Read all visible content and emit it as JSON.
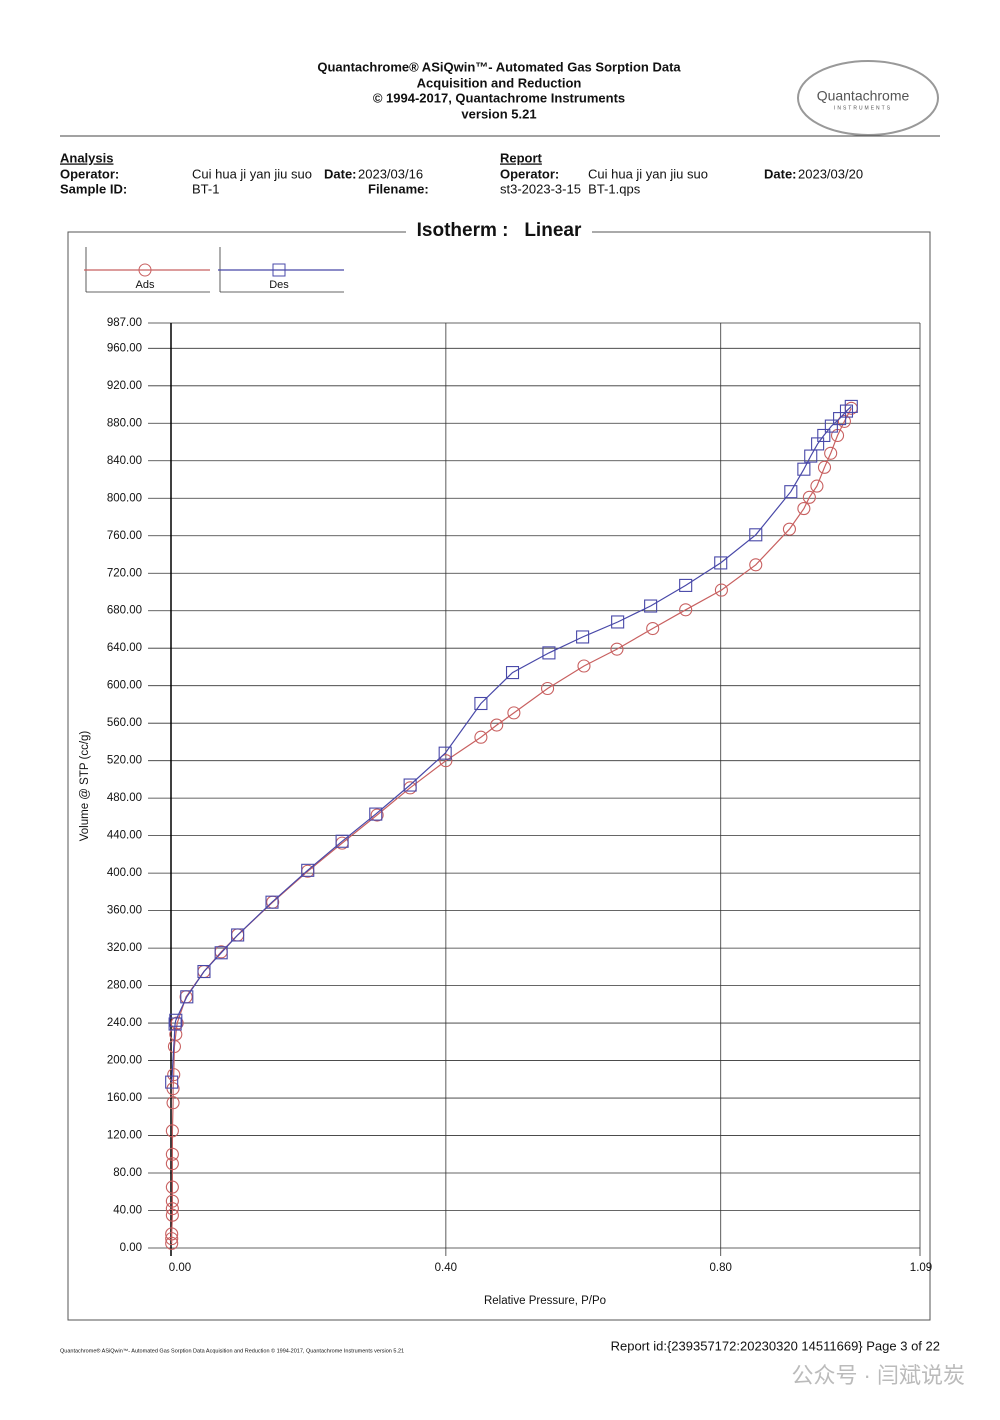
{
  "header": {
    "title_lines": [
      "Quantachrome® ASiQwin™- Automated Gas Sorption Data",
      "Acquisition and Reduction",
      "© 1994-2017, Quantachrome Instruments",
      "version 5.21"
    ],
    "logo": "Quantachrome",
    "logo_sub": "INSTRUMENTS"
  },
  "analysis": {
    "heading": "Analysis",
    "operator_label": "Operator:",
    "operator": "Cui hua ji yan jiu suo",
    "date_label": "Date:",
    "date": "2023/03/16",
    "sample_label": "Sample ID:",
    "sample": "BT-1",
    "filename_label": "Filename:"
  },
  "report": {
    "heading": "Report",
    "operator_label": "Operator:",
    "operator": "Cui hua ji yan jiu suo",
    "date_label": "Date:",
    "date": "2023/03/20",
    "filename": "st3-2023-3-15  BT-1.qps"
  },
  "chart_data": {
    "type": "line",
    "title": "Isotherm :   Linear",
    "x_label": "Relative Pressure, P/Po",
    "y_label": "Volume @ STP (cc/g)",
    "xlim": [
      0,
      1.09
    ],
    "ylim": [
      0,
      987
    ],
    "xticks": [
      {
        "value": 0,
        "label": "0.00"
      },
      {
        "value": 0.4,
        "label": "0.40"
      },
      {
        "value": 0.8,
        "label": "0.80"
      },
      {
        "value": 1.09,
        "label": "1.09"
      }
    ],
    "yticks": [
      {
        "value": 0,
        "label": "0.00"
      },
      {
        "value": 40,
        "label": "40.00"
      },
      {
        "value": 80,
        "label": "80.00"
      },
      {
        "value": 120,
        "label": "120.00"
      },
      {
        "value": 160,
        "label": "160.00"
      },
      {
        "value": 200,
        "label": "200.00"
      },
      {
        "value": 240,
        "label": "240.00"
      },
      {
        "value": 280,
        "label": "280.00"
      },
      {
        "value": 320,
        "label": "320.00"
      },
      {
        "value": 360,
        "label": "360.00"
      },
      {
        "value": 400,
        "label": "400.00"
      },
      {
        "value": 440,
        "label": "440.00"
      },
      {
        "value": 480,
        "label": "480.00"
      },
      {
        "value": 520,
        "label": "520.00"
      },
      {
        "value": 560,
        "label": "560.00"
      },
      {
        "value": 600,
        "label": "600.00"
      },
      {
        "value": 640,
        "label": "640.00"
      },
      {
        "value": 680,
        "label": "680.00"
      },
      {
        "value": 720,
        "label": "720.00"
      },
      {
        "value": 760,
        "label": "760.00"
      },
      {
        "value": 800,
        "label": "800.00"
      },
      {
        "value": 840,
        "label": "840.00"
      },
      {
        "value": 880,
        "label": "880.00"
      },
      {
        "value": 920,
        "label": "920.00"
      },
      {
        "value": 960,
        "label": "960.00"
      },
      {
        "value": 987,
        "label": "987.00"
      }
    ],
    "grid": true,
    "legend": "top-left",
    "series": [
      {
        "name": "Ads",
        "color": "#c86060",
        "marker": "circle",
        "x": [
          0.001,
          0.001,
          0.001,
          0.002,
          0.002,
          0.002,
          0.002,
          0.002,
          0.002,
          0.002,
          0.003,
          0.003,
          0.004,
          0.005,
          0.007,
          0.009,
          0.022,
          0.048,
          0.073,
          0.097,
          0.148,
          0.199,
          0.249,
          0.3,
          0.348,
          0.4,
          0.451,
          0.474,
          0.499,
          0.548,
          0.601,
          0.649,
          0.701,
          0.749,
          0.801,
          0.851,
          0.9,
          0.921,
          0.929,
          0.94,
          0.951,
          0.96,
          0.97,
          0.98,
          0.99
        ],
        "values": [
          5,
          10,
          15,
          35,
          42,
          50,
          65,
          90,
          100,
          125,
          155,
          170,
          185,
          215,
          228,
          240,
          268,
          295,
          316,
          334,
          369,
          402,
          432,
          462,
          491,
          520,
          545,
          558,
          571,
          597,
          621,
          639,
          661,
          681,
          702,
          729,
          767,
          789,
          801,
          813,
          833,
          848,
          867,
          882,
          896
        ]
      },
      {
        "name": "Des",
        "color": "#4848a8",
        "marker": "square",
        "x": [
          0.99,
          0.983,
          0.973,
          0.961,
          0.95,
          0.941,
          0.931,
          0.921,
          0.902,
          0.851,
          0.8,
          0.749,
          0.698,
          0.65,
          0.599,
          0.55,
          0.497,
          0.451,
          0.399,
          0.348,
          0.298,
          0.249,
          0.199,
          0.147,
          0.097,
          0.073,
          0.048,
          0.023,
          0.007,
          0.006,
          0.001
        ],
        "values": [
          898,
          893,
          885,
          877,
          867,
          858,
          845,
          831,
          807,
          761,
          731,
          707,
          685,
          668,
          652,
          635,
          614,
          581,
          528,
          494,
          463,
          434,
          403,
          369,
          334,
          315,
          295,
          268,
          243,
          239,
          177
        ]
      }
    ]
  },
  "footer": {
    "left": "Quantachrome® ASiQwin™- Automated Gas Sorption Data Acquisition and Reduction © 1994-2017, Quantachrome Instruments version 5.21",
    "right": "Report id:{239357172:20230320 14511669} Page 3 of 22"
  },
  "watermark": "公众号 · 闫斌说炭"
}
